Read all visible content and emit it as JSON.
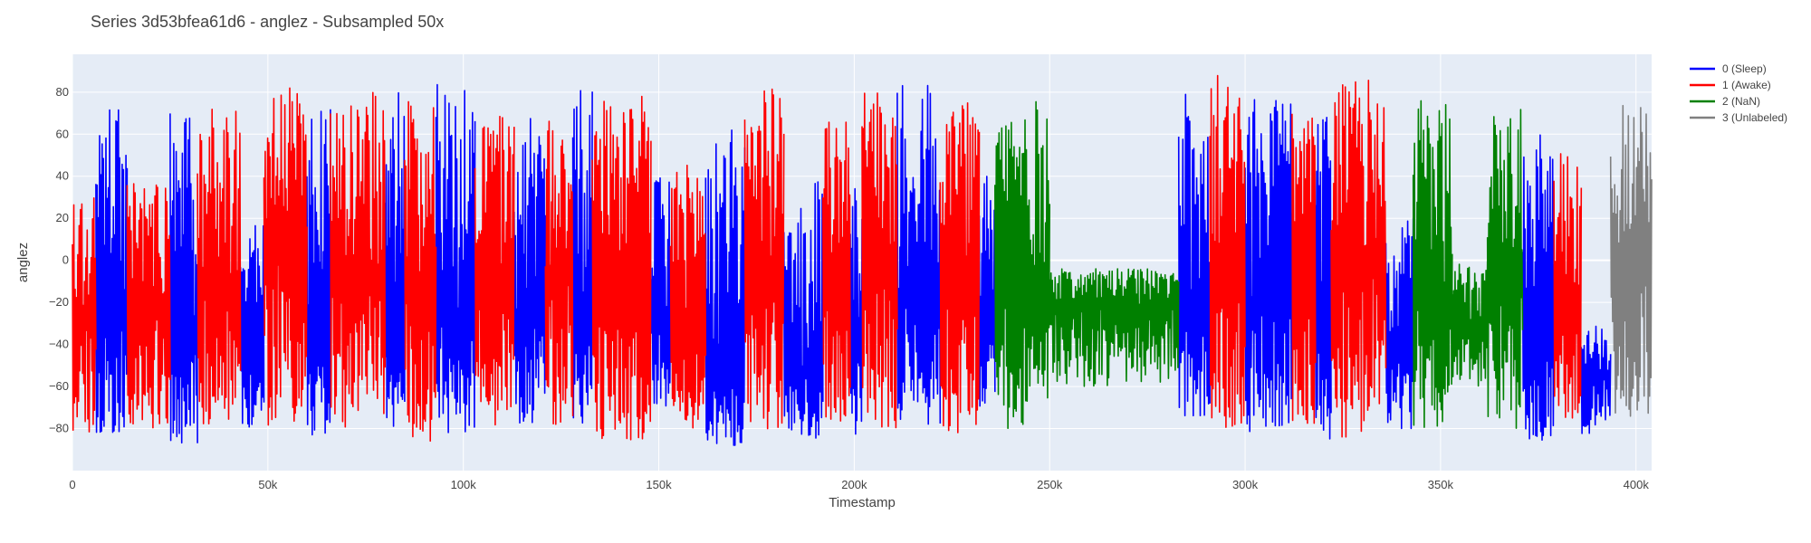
{
  "chart_data": {
    "type": "line",
    "title": "Series 3d53bfea61d6 - anglez - Subsampled 50x",
    "xlabel": "Timestamp",
    "ylabel": "anglez",
    "xlim": [
      0,
      404000
    ],
    "ylim": [
      -100,
      98
    ],
    "x_ticks": [
      0,
      50000,
      100000,
      150000,
      200000,
      250000,
      300000,
      350000,
      400000
    ],
    "x_tick_labels": [
      "0",
      "50k",
      "100k",
      "150k",
      "200k",
      "250k",
      "300k",
      "350k",
      "400k"
    ],
    "y_ticks": [
      -80,
      -60,
      -40,
      -20,
      0,
      20,
      40,
      60,
      80
    ],
    "y_tick_labels": [
      "−80",
      "−60",
      "−40",
      "−20",
      "0",
      "20",
      "40",
      "60",
      "80"
    ],
    "grid": true,
    "legend_position": "top-right",
    "series": [
      {
        "name": "0 (Sleep)",
        "color": "#0000ff",
        "segments": [
          {
            "x_range": [
              6000,
              14000
            ],
            "y_min": -82,
            "y_max": 72,
            "y_mean": -30,
            "points": 50
          },
          {
            "x_range": [
              25000,
              32000
            ],
            "y_min": -88,
            "y_max": 84,
            "y_mean": -40,
            "points": 45
          },
          {
            "x_range": [
              43000,
              49000
            ],
            "y_min": -80,
            "y_max": 20,
            "y_mean": -50,
            "points": 35
          },
          {
            "x_range": [
              60000,
              66000
            ],
            "y_min": -83,
            "y_max": 72,
            "y_mean": -45,
            "points": 40
          },
          {
            "x_range": [
              80000,
              85000
            ],
            "y_min": -80,
            "y_max": 82,
            "y_mean": -35,
            "points": 35
          },
          {
            "x_range": [
              93000,
              103000
            ],
            "y_min": -82,
            "y_max": 86,
            "y_mean": -30,
            "points": 60
          },
          {
            "x_range": [
              113000,
              121000
            ],
            "y_min": -78,
            "y_max": 68,
            "y_mean": -30,
            "points": 50
          },
          {
            "x_range": [
              128000,
              133000
            ],
            "y_min": -80,
            "y_max": 84,
            "y_mean": -30,
            "points": 30
          },
          {
            "x_range": [
              148000,
              153000
            ],
            "y_min": -70,
            "y_max": 40,
            "y_mean": -30,
            "points": 30
          },
          {
            "x_range": [
              162000,
              172000
            ],
            "y_min": -88,
            "y_max": 62,
            "y_mean": -55,
            "points": 60
          },
          {
            "x_range": [
              182000,
              192000
            ],
            "y_min": -86,
            "y_max": 40,
            "y_mean": -55,
            "points": 55
          },
          {
            "x_range": [
              199000,
              202000
            ],
            "y_min": -84,
            "y_max": 38,
            "y_mean": -40,
            "points": 20
          },
          {
            "x_range": [
              211000,
              222000
            ],
            "y_min": -78,
            "y_max": 84,
            "y_mean": -20,
            "points": 65
          },
          {
            "x_range": [
              232000,
              236000
            ],
            "y_min": -70,
            "y_max": 42,
            "y_mean": -30,
            "points": 25
          },
          {
            "x_range": [
              283000,
              291000
            ],
            "y_min": -76,
            "y_max": 80,
            "y_mean": -25,
            "points": 45
          },
          {
            "x_range": [
              300000,
              312000
            ],
            "y_min": -84,
            "y_max": 78,
            "y_mean": -20,
            "points": 70
          },
          {
            "x_range": [
              318000,
              322000
            ],
            "y_min": -86,
            "y_max": 68,
            "y_mean": -20,
            "points": 25
          },
          {
            "x_range": [
              336000,
              343000
            ],
            "y_min": -80,
            "y_max": 22,
            "y_mean": -45,
            "points": 40
          },
          {
            "x_range": [
              371000,
              379000
            ],
            "y_min": -86,
            "y_max": 60,
            "y_mean": -45,
            "points": 50
          },
          {
            "x_range": [
              386000,
              393500
            ],
            "y_min": -84,
            "y_max": -30,
            "y_mean": -55,
            "points": 40
          }
        ]
      },
      {
        "name": "1 (Awake)",
        "color": "#ff0000",
        "segments": [
          {
            "x_range": [
              0,
              6000
            ],
            "y_min": -82,
            "y_max": 32,
            "y_mean": -30,
            "points": 35
          },
          {
            "x_range": [
              14000,
              25000
            ],
            "y_min": -80,
            "y_max": 40,
            "y_mean": -25,
            "points": 65
          },
          {
            "x_range": [
              32000,
              43000
            ],
            "y_min": -78,
            "y_max": 72,
            "y_mean": -15,
            "points": 65
          },
          {
            "x_range": [
              49000,
              60000
            ],
            "y_min": -80,
            "y_max": 82,
            "y_mean": 0,
            "points": 70
          },
          {
            "x_range": [
              66000,
              80000
            ],
            "y_min": -80,
            "y_max": 80,
            "y_mean": -10,
            "points": 85
          },
          {
            "x_range": [
              85000,
              93000
            ],
            "y_min": -86,
            "y_max": 78,
            "y_mean": -15,
            "points": 50
          },
          {
            "x_range": [
              103000,
              113000
            ],
            "y_min": -80,
            "y_max": 72,
            "y_mean": -15,
            "points": 60
          },
          {
            "x_range": [
              121000,
              128000
            ],
            "y_min": -82,
            "y_max": 70,
            "y_mean": -10,
            "points": 45
          },
          {
            "x_range": [
              133000,
              148000
            ],
            "y_min": -86,
            "y_max": 78,
            "y_mean": -15,
            "points": 90
          },
          {
            "x_range": [
              153000,
              162000
            ],
            "y_min": -80,
            "y_max": 46,
            "y_mean": -25,
            "points": 55
          },
          {
            "x_range": [
              172000,
              182000
            ],
            "y_min": -82,
            "y_max": 82,
            "y_mean": -5,
            "points": 60
          },
          {
            "x_range": [
              192000,
              199000
            ],
            "y_min": -80,
            "y_max": 70,
            "y_mean": -15,
            "points": 45
          },
          {
            "x_range": [
              202000,
              211000
            ],
            "y_min": -80,
            "y_max": 80,
            "y_mean": -10,
            "points": 55
          },
          {
            "x_range": [
              222000,
              232000
            ],
            "y_min": -82,
            "y_max": 76,
            "y_mean": -10,
            "points": 60
          },
          {
            "x_range": [
              291000,
              300000
            ],
            "y_min": -80,
            "y_max": 88,
            "y_mean": -5,
            "points": 55
          },
          {
            "x_range": [
              312000,
              318000
            ],
            "y_min": -80,
            "y_max": 70,
            "y_mean": -15,
            "points": 35
          },
          {
            "x_range": [
              322000,
              336000
            ],
            "y_min": -84,
            "y_max": 86,
            "y_mean": -5,
            "points": 85
          },
          {
            "x_range": [
              379000,
              386000
            ],
            "y_min": -78,
            "y_max": 52,
            "y_mean": -25,
            "points": 40
          }
        ]
      },
      {
        "name": "2 (NaN)",
        "color": "#008000",
        "segments": [
          {
            "x_range": [
              236000,
              250000
            ],
            "y_min": -80,
            "y_max": 76,
            "y_mean": -15,
            "points": 80
          },
          {
            "x_range": [
              250000,
              283000
            ],
            "y_min": -60,
            "y_max": -4,
            "y_mean": -22,
            "points": 190
          },
          {
            "x_range": [
              343000,
              353000
            ],
            "y_min": -80,
            "y_max": 76,
            "y_mean": -20,
            "points": 60
          },
          {
            "x_range": [
              353000,
              362000
            ],
            "y_min": -60,
            "y_max": 0,
            "y_mean": -30,
            "points": 50
          },
          {
            "x_range": [
              362000,
              371000
            ],
            "y_min": -80,
            "y_max": 76,
            "y_mean": -10,
            "points": 55
          }
        ]
      },
      {
        "name": "3 (Unlabeled)",
        "color": "#808080",
        "segments": [
          {
            "x_range": [
              393500,
              404000
            ],
            "y_min": -78,
            "y_max": 76,
            "y_mean": -5,
            "points": 60
          }
        ]
      }
    ]
  }
}
